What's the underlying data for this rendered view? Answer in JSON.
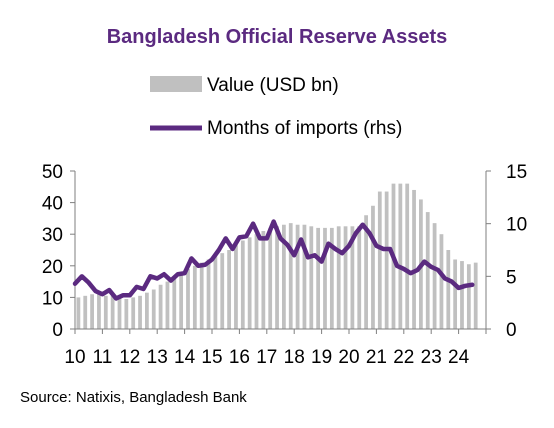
{
  "title": "Bangladesh Official Reserve Assets",
  "source": "Source: Natixis, Bangladesh Bank",
  "colors": {
    "bar": "#c0c0c0",
    "line": "#5b2a80",
    "title": "#5b2a80",
    "axis": "#7f7f7f"
  },
  "chart_data": {
    "type": "bar+line",
    "legend_position": "top-center",
    "grid": false,
    "x_tick_labels": [
      "10",
      "11",
      "12",
      "13",
      "14",
      "15",
      "16",
      "17",
      "18",
      "19",
      "20",
      "21",
      "22",
      "23",
      "24"
    ],
    "x_range": [
      2010,
      2025
    ],
    "y_left": {
      "range": [
        0,
        50
      ],
      "ticks": [
        "0",
        "10",
        "20",
        "30",
        "40",
        "50"
      ]
    },
    "y_right": {
      "range": [
        0,
        15
      ],
      "ticks": [
        "0",
        "5",
        "10",
        "15"
      ]
    },
    "series": [
      {
        "name": "Value (USD bn)",
        "kind": "bar",
        "axis": "left",
        "x": [
          2010.0,
          2010.25,
          2010.5,
          2010.75,
          2011.0,
          2011.25,
          2011.5,
          2011.75,
          2012.0,
          2012.25,
          2012.5,
          2012.75,
          2013.0,
          2013.25,
          2013.5,
          2013.75,
          2014.0,
          2014.25,
          2014.5,
          2014.75,
          2015.0,
          2015.25,
          2015.5,
          2015.75,
          2016.0,
          2016.25,
          2016.5,
          2016.75,
          2017.0,
          2017.25,
          2017.5,
          2017.75,
          2018.0,
          2018.25,
          2018.5,
          2018.75,
          2019.0,
          2019.25,
          2019.5,
          2019.75,
          2020.0,
          2020.25,
          2020.5,
          2020.75,
          2021.0,
          2021.25,
          2021.5,
          2021.75,
          2022.0,
          2022.25,
          2022.5,
          2022.75,
          2023.0,
          2023.25,
          2023.5,
          2023.75,
          2024.0,
          2024.25,
          2024.5
        ],
        "values": [
          10,
          10.5,
          11,
          11,
          10.5,
          10.5,
          10.5,
          9.5,
          10,
          10.5,
          11.5,
          12.5,
          14,
          15,
          16,
          17,
          19,
          20,
          21,
          22,
          23,
          24,
          25,
          26.5,
          28,
          29,
          30,
          31,
          32,
          32.5,
          33,
          33.5,
          33,
          33,
          32.5,
          32,
          32,
          32,
          32.5,
          32.5,
          32.5,
          32.5,
          36,
          39,
          43.5,
          43.5,
          46,
          46,
          46,
          44,
          41,
          37,
          33.5,
          30,
          25,
          22,
          21.5,
          20.5,
          21
        ]
      },
      {
        "name": "Months of imports (rhs)",
        "kind": "line",
        "axis": "right",
        "x": [
          2010.0,
          2010.25,
          2010.5,
          2010.75,
          2011.0,
          2011.25,
          2011.5,
          2011.75,
          2012.0,
          2012.25,
          2012.5,
          2012.75,
          2013.0,
          2013.25,
          2013.5,
          2013.75,
          2014.0,
          2014.25,
          2014.5,
          2014.75,
          2015.0,
          2015.25,
          2015.5,
          2015.75,
          2016.0,
          2016.25,
          2016.5,
          2016.75,
          2017.0,
          2017.25,
          2017.5,
          2017.75,
          2018.0,
          2018.25,
          2018.5,
          2018.75,
          2019.0,
          2019.25,
          2019.5,
          2019.75,
          2020.0,
          2020.25,
          2020.5,
          2020.75,
          2021.0,
          2021.25,
          2021.5,
          2021.75,
          2022.0,
          2022.25,
          2022.5,
          2022.75,
          2023.0,
          2023.25,
          2023.5,
          2023.75,
          2024.0,
          2024.25,
          2024.5
        ],
        "values": [
          4.3,
          5.0,
          4.4,
          3.6,
          3.3,
          3.7,
          2.9,
          3.2,
          3.2,
          4.0,
          3.8,
          5.0,
          4.8,
          5.2,
          4.6,
          5.2,
          5.3,
          6.7,
          6.0,
          6.1,
          6.6,
          7.5,
          8.6,
          7.6,
          8.7,
          8.8,
          10.0,
          8.6,
          8.6,
          10.2,
          8.6,
          8.0,
          7.0,
          8.5,
          6.8,
          7.0,
          6.4,
          8.1,
          7.6,
          7.2,
          7.9,
          9.1,
          9.9,
          9.1,
          7.9,
          7.6,
          7.6,
          6.0,
          5.7,
          5.3,
          5.6,
          6.4,
          5.9,
          5.6,
          4.8,
          4.5,
          3.9,
          4.1,
          4.2
        ]
      }
    ]
  }
}
